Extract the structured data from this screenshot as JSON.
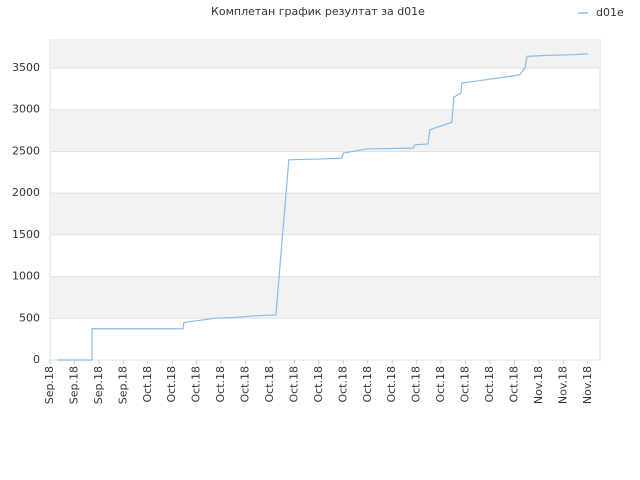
{
  "chart_data": {
    "type": "line",
    "title": "Комплетан график резултат за d01e",
    "xlim": [
      0,
      22.5
    ],
    "ylim": [
      0,
      3836
    ],
    "xticks": [
      {
        "value": 0,
        "label": "Sep.18"
      },
      {
        "value": 1,
        "label": "Sep.18"
      },
      {
        "value": 2,
        "label": "Sep.18"
      },
      {
        "value": 3,
        "label": "Sep.18"
      },
      {
        "value": 4,
        "label": "Oct.18"
      },
      {
        "value": 5,
        "label": "Oct.18"
      },
      {
        "value": 6,
        "label": "Oct.18"
      },
      {
        "value": 7,
        "label": "Oct.18"
      },
      {
        "value": 8,
        "label": "Oct.18"
      },
      {
        "value": 9,
        "label": "Oct.18"
      },
      {
        "value": 10,
        "label": "Oct.18"
      },
      {
        "value": 11,
        "label": "Oct.18"
      },
      {
        "value": 12,
        "label": "Oct.18"
      },
      {
        "value": 13,
        "label": "Oct.18"
      },
      {
        "value": 14,
        "label": "Oct.18"
      },
      {
        "value": 15,
        "label": "Oct.18"
      },
      {
        "value": 16,
        "label": "Oct.18"
      },
      {
        "value": 17,
        "label": "Oct.18"
      },
      {
        "value": 18,
        "label": "Oct.18"
      },
      {
        "value": 19,
        "label": "Oct.18"
      },
      {
        "value": 20,
        "label": "Nov.18"
      },
      {
        "value": 21,
        "label": "Nov.18"
      },
      {
        "value": 22,
        "label": "Nov.18"
      }
    ],
    "yticks": [
      0,
      500,
      1000,
      1500,
      2000,
      2500,
      3000,
      3500
    ],
    "grid": true,
    "legend": "top-right",
    "series": [
      {
        "name": "d01e",
        "color": "#88bbee",
        "x": [
          0.29,
          1.72,
          1.72,
          5.44,
          5.48,
          6.75,
          7.57,
          8.39,
          9.24,
          9.77,
          11.1,
          11.94,
          12.0,
          12.95,
          14.85,
          14.93,
          15.46,
          15.54,
          16.44,
          16.52,
          16.81,
          16.85,
          17.59,
          18.81,
          19.22,
          19.43,
          19.51,
          20.25,
          21.4,
          22.0
        ],
        "y": [
          0,
          0,
          375,
          375,
          450,
          500,
          510,
          530,
          540,
          2400,
          2410,
          2420,
          2480,
          2530,
          2540,
          2580,
          2590,
          2760,
          2850,
          3150,
          3200,
          3320,
          3350,
          3400,
          3420,
          3500,
          3640,
          3650,
          3660,
          3670
        ]
      }
    ]
  }
}
